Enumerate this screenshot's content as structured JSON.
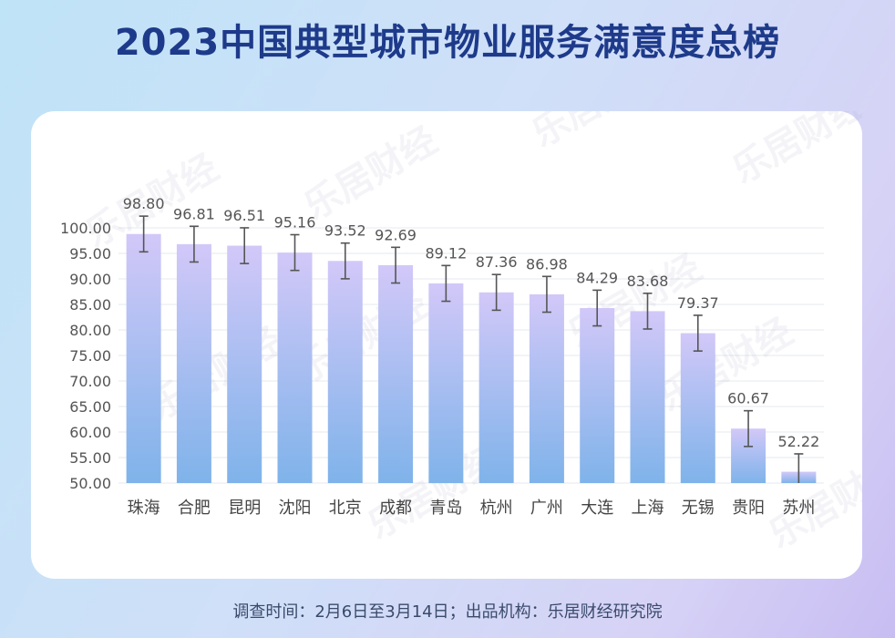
{
  "title": "2023中国典型城市物业服务满意度总榜",
  "footer": "调查时间：2月6日至3月14日；出品机构：乐居财经研究院",
  "watermark": "乐居财经",
  "colors": {
    "title": "#1e3a8a",
    "bar_top": "#d2c8f8",
    "bar_bottom": "#7fb3ea",
    "grid": "#e6e8ef",
    "errbar": "#555555",
    "label": "#555555"
  },
  "chart_data": {
    "type": "bar",
    "title": "2023中国典型城市物业服务满意度总榜",
    "categories": [
      "珠海",
      "合肥",
      "昆明",
      "沈阳",
      "北京",
      "成都",
      "青岛",
      "杭州",
      "广州",
      "大连",
      "上海",
      "无锡",
      "贵阳",
      "苏州"
    ],
    "values": [
      98.8,
      96.81,
      96.51,
      95.16,
      93.52,
      92.69,
      89.12,
      87.36,
      86.98,
      84.29,
      83.68,
      79.37,
      60.67,
      52.22
    ],
    "value_labels": [
      "98.80",
      "96.81",
      "96.51",
      "95.16",
      "93.52",
      "92.69",
      "89.12",
      "87.36",
      "86.98",
      "84.29",
      "83.68",
      "79.37",
      "60.67",
      "52.22"
    ],
    "error_bars": [
      3.5,
      3.5,
      3.5,
      3.5,
      3.5,
      3.5,
      3.5,
      3.5,
      3.5,
      3.5,
      3.5,
      3.5,
      3.5,
      3.5
    ],
    "ylim": [
      50,
      100
    ],
    "yticks": [
      "50.00",
      "55.00",
      "60.00",
      "65.00",
      "70.00",
      "75.00",
      "80.00",
      "85.00",
      "90.00",
      "95.00",
      "100.00"
    ],
    "grid": true,
    "xlabel": "",
    "ylabel": ""
  }
}
